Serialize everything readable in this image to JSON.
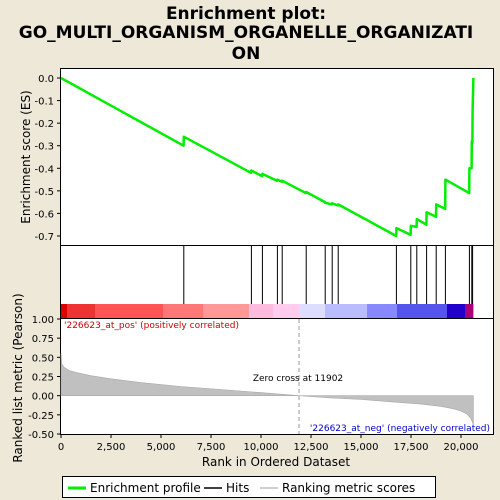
{
  "chart_data": {
    "type": "line",
    "title": "Enrichment plot:\nGO_MULTI_ORGANISM_ORGANELLE_ORGANIZATI\nON",
    "xlabel": "Rank in Ordered Dataset",
    "xlim": [
      0,
      21600
    ],
    "x_ticks": [
      0,
      2500,
      5000,
      7500,
      10000,
      12500,
      15000,
      17500,
      20000
    ],
    "x_tick_labels": [
      "0",
      "2,500",
      "5,000",
      "7,500",
      "10,000",
      "12,500",
      "15,000",
      "17,500",
      "20,000"
    ],
    "es_panel": {
      "ylabel": "Enrichment score (ES)",
      "ylim": [
        -0.74,
        0.04
      ],
      "y_ticks": [
        0.0,
        -0.1,
        -0.2,
        -0.3,
        -0.4,
        -0.5,
        -0.6,
        -0.7
      ],
      "y_tick_labels": [
        "0.0",
        "-0.1",
        "-0.2",
        "-0.3",
        "-0.4",
        "-0.5",
        "-0.6",
        "-0.7"
      ],
      "series": [
        {
          "name": "Enrichment profile",
          "color": "#00ee00",
          "x": [
            0,
            6130,
            6140,
            9500,
            9520,
            10050,
            10070,
            10800,
            10820,
            11050,
            11060,
            12250,
            12260,
            13200,
            13210,
            13550,
            13560,
            13850,
            13860,
            16760,
            16770,
            17480,
            17490,
            17780,
            17790,
            18270,
            18280,
            18750,
            18760,
            19210,
            19220,
            20410,
            20420,
            20530,
            20540,
            20570,
            20580,
            20620
          ],
          "y": [
            0.0,
            -0.3,
            -0.26,
            -0.42,
            -0.41,
            -0.435,
            -0.425,
            -0.455,
            -0.45,
            -0.46,
            -0.455,
            -0.51,
            -0.505,
            -0.55,
            -0.553,
            -0.56,
            -0.555,
            -0.565,
            -0.56,
            -0.7,
            -0.665,
            -0.695,
            -0.655,
            -0.66,
            -0.625,
            -0.65,
            -0.595,
            -0.615,
            -0.56,
            -0.58,
            -0.45,
            -0.51,
            -0.4,
            -0.4,
            -0.28,
            -0.285,
            -0.14,
            0.0
          ]
        }
      ]
    },
    "hits_panel": {
      "name": "Hits",
      "x": [
        6140,
        9520,
        10070,
        10820,
        11060,
        12260,
        13210,
        13560,
        13860,
        16770,
        17490,
        17790,
        18280,
        18760,
        19220,
        20420,
        20540,
        20580
      ]
    },
    "bar": {
      "range": [
        0,
        20620
      ],
      "segments": [
        {
          "start": 0,
          "end": 300,
          "color": "#dd0000"
        },
        {
          "start": 300,
          "end": 1700,
          "color": "#ee3333"
        },
        {
          "start": 1700,
          "end": 5100,
          "color": "#ff5555"
        },
        {
          "start": 5100,
          "end": 7100,
          "color": "#ff7777"
        },
        {
          "start": 7100,
          "end": 9400,
          "color": "#ff9999"
        },
        {
          "start": 9400,
          "end": 10600,
          "color": "#ffbbdd"
        },
        {
          "start": 10600,
          "end": 11900,
          "color": "#ffccee"
        },
        {
          "start": 11900,
          "end": 13200,
          "color": "#ddddff"
        },
        {
          "start": 13200,
          "end": 15300,
          "color": "#bbbbff"
        },
        {
          "start": 15300,
          "end": 16800,
          "color": "#8888ff"
        },
        {
          "start": 16800,
          "end": 19300,
          "color": "#5555ee"
        },
        {
          "start": 19300,
          "end": 20200,
          "color": "#2200cc"
        },
        {
          "start": 20200,
          "end": 20620,
          "color": "#aa0077"
        }
      ]
    },
    "metric_panel": {
      "ylabel": "Ranked list metric (Pearson)",
      "ylim": [
        -0.5,
        1.0
      ],
      "y_ticks": [
        1.0,
        0.75,
        0.5,
        0.25,
        0.0,
        -0.25,
        -0.5
      ],
      "y_tick_labels": [
        "1.00",
        "0.75",
        "0.50",
        "0.25",
        "0.00",
        "-0.25",
        "-0.50"
      ],
      "series": [
        {
          "name": "Ranking metric scores",
          "color": "#c0c0c0",
          "x": [
            0,
            30,
            150,
            400,
            800,
            1500,
            2500,
            4000,
            6000,
            8000,
            10000,
            11902,
            13500,
            15000,
            16500,
            18000,
            19000,
            19600,
            20000,
            20300,
            20500,
            20620
          ],
          "y": [
            0.55,
            0.42,
            0.37,
            0.33,
            0.3,
            0.26,
            0.22,
            0.17,
            0.12,
            0.08,
            0.04,
            0.0,
            -0.03,
            -0.05,
            -0.08,
            -0.11,
            -0.14,
            -0.17,
            -0.2,
            -0.24,
            -0.3,
            -0.38
          ]
        }
      ],
      "zero_cross_x": 11902,
      "annotations": {
        "pos_label": "'226623_at_pos' (positively correlated)",
        "neg_label": "'226623_at_neg' (negatively correlated)",
        "zero_cross_label": "Zero cross at 11902"
      }
    },
    "legend": {
      "placement": "bottom",
      "entries": [
        {
          "label": "Enrichment profile",
          "color": "#00ee00"
        },
        {
          "label": "Hits",
          "color": "#000000"
        },
        {
          "label": "Ranking metric scores",
          "color": "#c0c0c0"
        }
      ]
    }
  }
}
